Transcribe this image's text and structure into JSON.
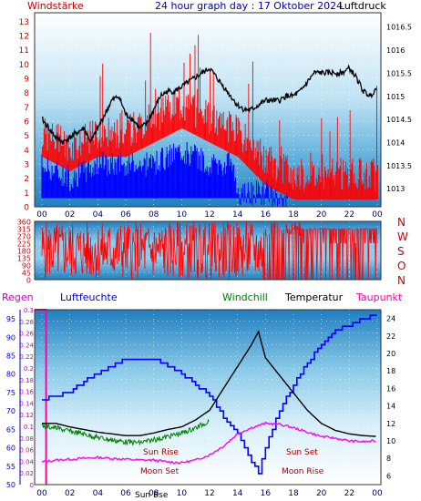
{
  "header": {
    "left_label": "Windstärke",
    "title": "24 hour graph day : 17 Oktober 2024",
    "right_label": "Luftdruck"
  },
  "mid_panel": {
    "compass": [
      "N",
      "W",
      "S",
      "O",
      "N"
    ]
  },
  "bottom_header": {
    "regen": "Regen",
    "luftfeuchte": "Luftfeuchte",
    "windchill": "Windchill",
    "temperatur": "Temperatur",
    "taupunkt": "Taupunkt"
  },
  "annotations": {
    "sun_rise": "Sun Rise",
    "moon_set": "Moon Set",
    "sun_set": "Sun Set",
    "moon_rise": "Moon Rise",
    "bottom_label": "Sun Bse"
  },
  "colors": {
    "wind_speed": "#ff0000",
    "wind_gust": "#0000ff",
    "pressure": "#000000",
    "direction": "#ff0000",
    "regen": "#ff00aa",
    "humidity": "#0000ff",
    "windchill": "#008000",
    "temperature": "#000000",
    "dewpoint": "#ff00ff"
  },
  "chart_data": [
    {
      "type": "line",
      "panel": "wind-pressure",
      "x_ticks": [
        "00",
        "02",
        "04",
        "06",
        "08",
        "10",
        "12",
        "14",
        "16",
        "18",
        "20",
        "22",
        "00"
      ],
      "y_left": {
        "ticks": [
          0,
          1,
          2,
          3,
          4,
          5,
          6,
          7,
          8,
          9,
          10,
          11,
          12,
          13
        ],
        "ylim": [
          0,
          13.6
        ]
      },
      "y_right": {
        "ticks": [
          1013,
          1013.5,
          1014,
          1014.5,
          1015,
          1015.5,
          1016,
          1016.5
        ],
        "ylim": [
          1012.6,
          1016.8
        ]
      },
      "series": [
        {
          "key": "pressure",
          "x": [
            0,
            0.5,
            1,
            1.5,
            2,
            2.5,
            3,
            3.5,
            4,
            4.5,
            5,
            5.5,
            6,
            6.5,
            7,
            7.5,
            8,
            8.5,
            9,
            9.5,
            10,
            10.5,
            11,
            11.5,
            12,
            12.5,
            13,
            13.5,
            14,
            14.5,
            15,
            15.5,
            16,
            16.5,
            17,
            17.5,
            18,
            18.5,
            19,
            19.5,
            20,
            20.5,
            21,
            21.5,
            22,
            22.5,
            23,
            23.5,
            24
          ],
          "y": [
            1014.5,
            1014.3,
            1014.1,
            1014.0,
            1014.1,
            1014.2,
            1014.3,
            1014.0,
            1014.3,
            1014.6,
            1014.9,
            1015.0,
            1014.6,
            1014.5,
            1014.3,
            1014.4,
            1014.7,
            1015.0,
            1015.1,
            1015.1,
            1015.2,
            1015.3,
            1015.4,
            1015.5,
            1015.6,
            1015.4,
            1015.2,
            1015.0,
            1014.8,
            1014.7,
            1014.7,
            1014.8,
            1014.9,
            1014.9,
            1014.9,
            1015.0,
            1015.0,
            1015.1,
            1015.3,
            1015.5,
            1015.5,
            1015.5,
            1015.5,
            1015.5,
            1015.6,
            1015.4,
            1015.1,
            1015.0,
            1015.2
          ]
        },
        {
          "key": "wind_gust_band",
          "x": [
            0,
            2,
            4,
            6,
            8,
            10,
            12,
            13.7,
            14,
            16,
            18,
            20,
            22,
            24
          ],
          "y": [
            3,
            2,
            3,
            3,
            3,
            4,
            3,
            3,
            1,
            1,
            0,
            0,
            0,
            0
          ]
        },
        {
          "key": "wind_speed_band",
          "x": [
            0,
            2,
            4,
            6,
            8,
            10,
            12,
            14,
            16,
            18,
            20,
            22,
            24
          ],
          "y": [
            5,
            4,
            5,
            5,
            6,
            7,
            6,
            5,
            3,
            2,
            2,
            2,
            2
          ]
        }
      ]
    },
    {
      "type": "line",
      "panel": "wind-direction",
      "y_ticks": [
        0,
        45,
        90,
        135,
        180,
        225,
        270,
        315,
        360
      ],
      "ylim": [
        0,
        360
      ]
    },
    {
      "type": "line",
      "panel": "climate",
      "x_ticks": [
        "00",
        "02",
        "04",
        "06",
        "08",
        "10",
        "12",
        "14",
        "16",
        "18",
        "20",
        "22",
        "00"
      ],
      "y_rain": {
        "ticks": [
          0,
          0.02,
          0.04,
          0.06,
          0.08,
          0.1,
          0.12,
          0.14,
          0.16,
          0.18,
          0.2,
          0.22,
          0.24,
          0.26,
          0.28,
          0.3
        ],
        "ylim": [
          0,
          0.3
        ]
      },
      "y_humidity": {
        "ticks": [
          50,
          55,
          60,
          65,
          70,
          75,
          80,
          85,
          90,
          95
        ],
        "ylim": [
          50,
          97.5
        ]
      },
      "y_temp": {
        "ticks": [
          6,
          8,
          10,
          12,
          14,
          16,
          18,
          20,
          22,
          24
        ],
        "ylim": [
          5,
          25
        ]
      },
      "series": [
        {
          "key": "humidity",
          "x": [
            0,
            1,
            2,
            3,
            4,
            5,
            6,
            7,
            8,
            9,
            10,
            11,
            12,
            13,
            14,
            15,
            15.5,
            16,
            17,
            18,
            19,
            20,
            21,
            22,
            23,
            24
          ],
          "y": [
            73,
            74,
            75,
            78,
            80,
            82,
            84,
            84,
            84,
            82,
            80,
            77,
            74,
            68,
            64,
            56,
            53,
            60,
            70,
            77,
            83,
            88,
            92,
            93,
            95,
            96
          ]
        },
        {
          "key": "temperature",
          "x": [
            0,
            1,
            2,
            3,
            4,
            5,
            6,
            7,
            8,
            9,
            10,
            11,
            12,
            13,
            14,
            15,
            15.5,
            16,
            17,
            18,
            19,
            20,
            21,
            22,
            23,
            24
          ],
          "y": [
            12,
            12,
            11.6,
            11.3,
            11,
            10.8,
            10.6,
            10.6,
            10.9,
            11.3,
            11.6,
            12.4,
            13.5,
            16,
            18.5,
            21,
            22.5,
            19.5,
            17.5,
            15.5,
            13.5,
            12,
            11.2,
            10.8,
            10.6,
            10.5
          ]
        },
        {
          "key": "windchill",
          "x": [
            0,
            1,
            2,
            3,
            4,
            5,
            6,
            7,
            8,
            9,
            10,
            11,
            12
          ],
          "y": [
            12,
            11.8,
            11.4,
            11.1,
            10.7,
            10.4,
            10.2,
            10.1,
            10.4,
            10.8,
            11.2,
            11.8,
            12.6
          ]
        },
        {
          "key": "dewpoint",
          "x": [
            0,
            1,
            2,
            3,
            4,
            5,
            6,
            7,
            8,
            9,
            10,
            11,
            12,
            13,
            14,
            15,
            16,
            17,
            18,
            19,
            20,
            21,
            22,
            23,
            24
          ],
          "y": [
            7.6,
            7.8,
            7.9,
            8.0,
            8.1,
            8.0,
            7.9,
            7.8,
            7.8,
            7.6,
            7.5,
            7.8,
            8.4,
            9.4,
            10.8,
            11.5,
            12.0,
            11.9,
            11.5,
            11.0,
            10.5,
            10.3,
            10.0,
            9.9,
            10.0
          ]
        },
        {
          "key": "regen",
          "x": [
            0,
            24
          ],
          "y": [
            0,
            0
          ]
        }
      ]
    }
  ]
}
